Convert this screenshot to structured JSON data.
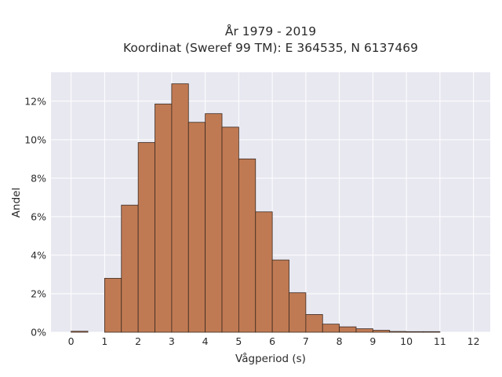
{
  "chart_data": {
    "type": "bar",
    "title": "År 1979 - 2019",
    "subtitle": "Koordinat (Sweref 99 TM): E 364535, N 6137469",
    "xlabel": "Vågperiod (s)",
    "ylabel": "Andel",
    "xlim": [
      -0.6,
      12.5
    ],
    "ylim": [
      0,
      13.5
    ],
    "xticks": [
      0,
      1,
      2,
      3,
      4,
      5,
      6,
      7,
      8,
      9,
      10,
      11,
      12
    ],
    "yticks": [
      0,
      2,
      4,
      6,
      8,
      10,
      12
    ],
    "ytick_labels": [
      "0%",
      "2%",
      "4%",
      "6%",
      "8%",
      "10%",
      "12%"
    ],
    "grid": true,
    "bin_width": 0.5,
    "bins": [
      {
        "start": 0.0,
        "value": 0.05
      },
      {
        "start": 1.0,
        "value": 2.8
      },
      {
        "start": 1.5,
        "value": 6.6
      },
      {
        "start": 2.0,
        "value": 9.85
      },
      {
        "start": 2.5,
        "value": 11.85
      },
      {
        "start": 3.0,
        "value": 12.9
      },
      {
        "start": 3.5,
        "value": 10.9
      },
      {
        "start": 4.0,
        "value": 11.35
      },
      {
        "start": 4.5,
        "value": 10.65
      },
      {
        "start": 5.0,
        "value": 9.0
      },
      {
        "start": 5.5,
        "value": 6.25
      },
      {
        "start": 6.0,
        "value": 3.75
      },
      {
        "start": 6.5,
        "value": 2.05
      },
      {
        "start": 7.0,
        "value": 0.92
      },
      {
        "start": 7.5,
        "value": 0.42
      },
      {
        "start": 8.0,
        "value": 0.28
      },
      {
        "start": 8.5,
        "value": 0.18
      },
      {
        "start": 9.0,
        "value": 0.1
      },
      {
        "start": 9.5,
        "value": 0.04
      },
      {
        "start": 10.0,
        "value": 0.03
      },
      {
        "start": 10.5,
        "value": 0.03
      }
    ],
    "colors": {
      "bar": "#c07a53",
      "plot_background": "#e8e8f1"
    }
  }
}
